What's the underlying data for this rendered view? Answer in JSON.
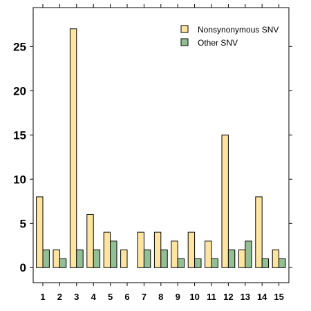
{
  "chart_data": {
    "type": "bar",
    "categories": [
      "1",
      "2",
      "3",
      "4",
      "5",
      "6",
      "7",
      "8",
      "9",
      "10",
      "11",
      "12",
      "13",
      "14",
      "15"
    ],
    "series": [
      {
        "name": "Nonsynonymous SNV",
        "color": "#fde4a0",
        "values": [
          8,
          2,
          27,
          6,
          4,
          2,
          4,
          4,
          3,
          4,
          3,
          15,
          2,
          8,
          2
        ]
      },
      {
        "name": "Other SNV",
        "color": "#92bf94",
        "values": [
          2,
          1,
          2,
          2,
          3,
          0,
          2,
          2,
          1,
          1,
          1,
          2,
          3,
          1,
          1
        ]
      }
    ],
    "yticks": [
      0,
      5,
      10,
      15,
      20,
      25
    ],
    "ylim": [
      -1.7,
      29.4
    ],
    "xlabel": "",
    "ylabel": "",
    "legend_position": "top-right",
    "grid": false
  }
}
